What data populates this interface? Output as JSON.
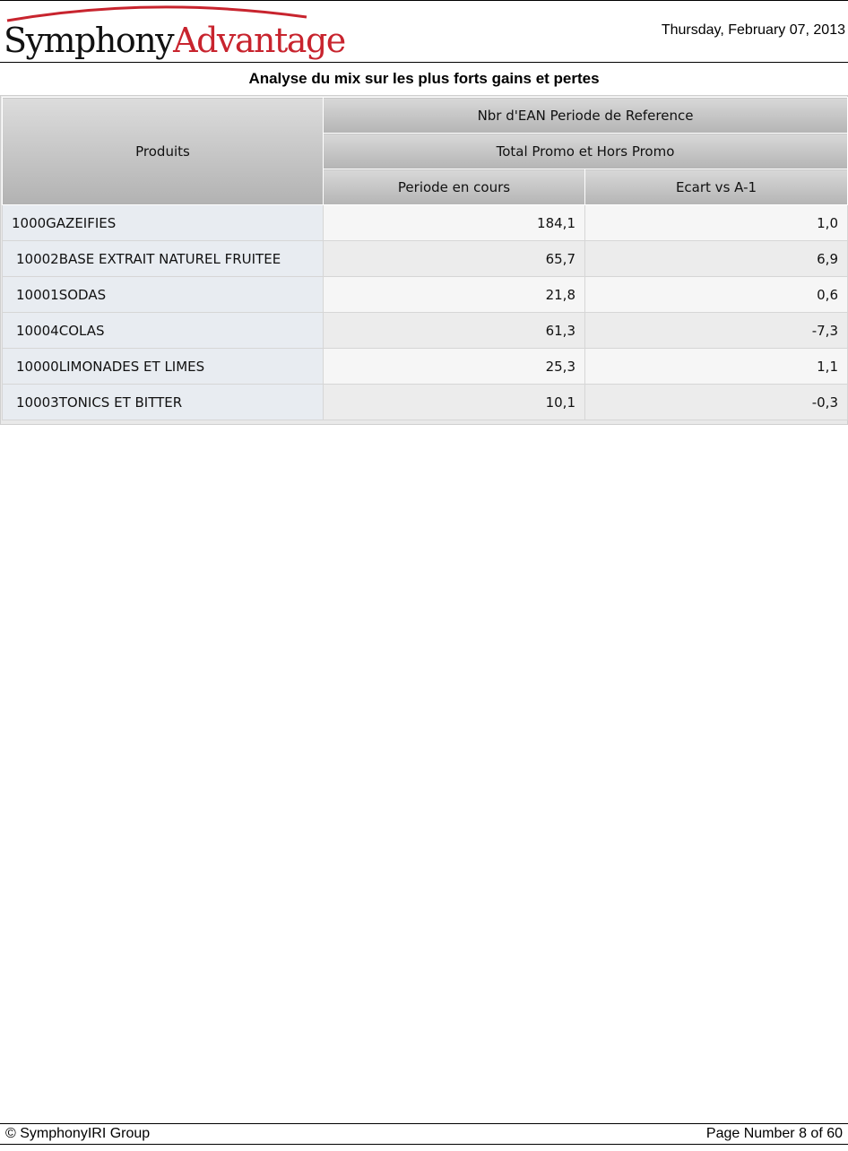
{
  "header": {
    "logo_part1": "Symphony",
    "logo_part2": "Advantage",
    "date": "Thursday, February 07, 2013"
  },
  "report": {
    "title": "Analyse du mix sur les plus forts gains et pertes"
  },
  "table": {
    "corner_label": "Produits",
    "measure_header": "Nbr d'EAN Periode de Reference",
    "scope_header": "Total Promo et Hors Promo",
    "columns": [
      "Periode en cours",
      "Ecart vs A-1"
    ],
    "rows": [
      {
        "label": "1000GAZEIFIES",
        "values": [
          "184,1",
          "1,0"
        ]
      },
      {
        "label": "10002BASE EXTRAIT NATUREL FRUITEE",
        "values": [
          "65,7",
          "6,9"
        ]
      },
      {
        "label": "10001SODAS",
        "values": [
          "21,8",
          "0,6"
        ]
      },
      {
        "label": "10004COLAS",
        "values": [
          "61,3",
          "-7,3"
        ]
      },
      {
        "label": "10000LIMONADES ET LIMES",
        "values": [
          "25,3",
          "1,1"
        ]
      },
      {
        "label": "10003TONICS ET BITTER",
        "values": [
          "10,1",
          "-0,3"
        ]
      }
    ]
  },
  "footer": {
    "copyright": "© SymphonyIRI Group",
    "page_number": "Page Number 8 of 60"
  },
  "colors": {
    "brand_red": "#c8242e",
    "header_gray": "#bdbdbd",
    "label_cell": "#e8ecf1"
  },
  "icons": {
    "logo_swoosh": "logo-swoosh-icon"
  }
}
